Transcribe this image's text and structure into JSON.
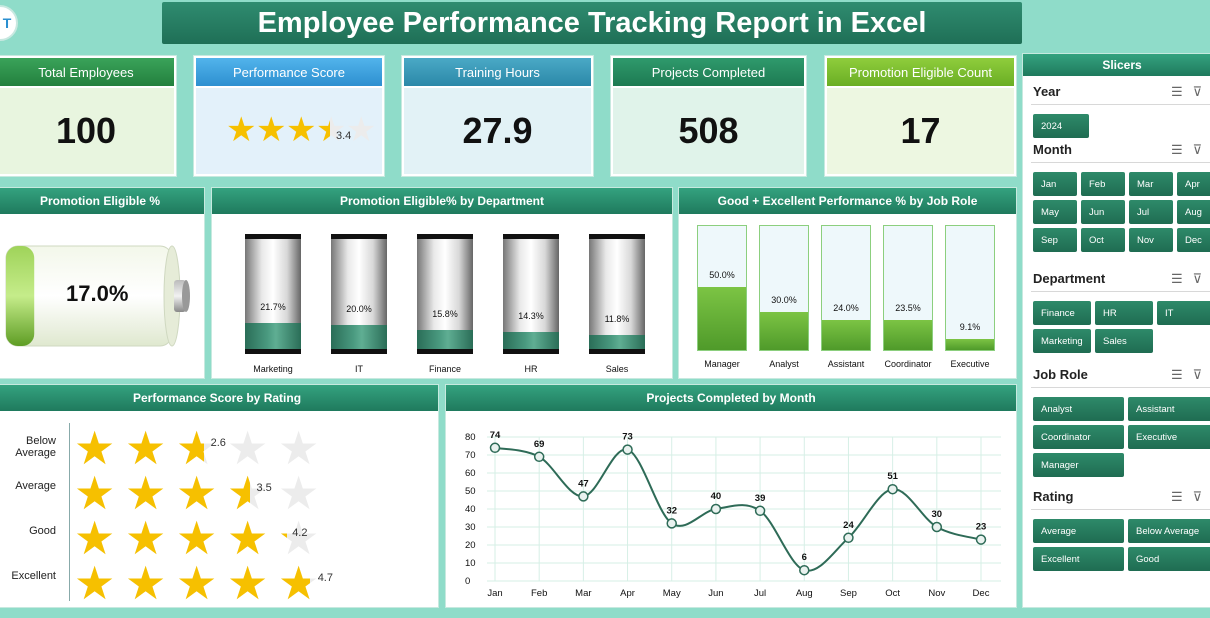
{
  "title": "Employee Performance Tracking Report in Excel",
  "logo_text": "T",
  "kpis": {
    "total_employees": {
      "label": "Total Employees",
      "value": "100"
    },
    "performance_score": {
      "label": "Performance Score",
      "value": "3.4",
      "rating": 3.4,
      "max": 5
    },
    "training_hours": {
      "label": "Training Hours",
      "value": "27.9"
    },
    "projects_completed": {
      "label": "Projects Completed",
      "value": "508"
    },
    "promotion_eligible_count": {
      "label": "Promotion Eligible Count",
      "value": "17"
    }
  },
  "promotion_pct": {
    "title": "Promotion Eligible %",
    "value_label": "17.0%",
    "value": 17.0
  },
  "colors": {
    "header_green": "#1f7a5d",
    "accent": "#3a8c74",
    "bar_green": "#6fbb3a",
    "star": "#f6c000"
  },
  "chart_data": [
    {
      "type": "bar",
      "title": "Promotion Eligible% by Department",
      "categories": [
        "Marketing",
        "IT",
        "Finance",
        "HR",
        "Sales"
      ],
      "values": [
        21.7,
        20.0,
        15.8,
        14.3,
        11.8
      ],
      "labels": [
        "21.7%",
        "20.0%",
        "15.8%",
        "14.3%",
        "11.8%"
      ],
      "ylim": [
        0,
        100
      ]
    },
    {
      "type": "bar",
      "title": "Good + Excellent Performance % by Job Role",
      "categories": [
        "Manager",
        "Analyst",
        "Assistant",
        "Coordinator",
        "Executive"
      ],
      "values": [
        50.0,
        30.0,
        24.0,
        23.5,
        9.1
      ],
      "labels": [
        "50.0%",
        "30.0%",
        "24.0%",
        "23.5%",
        "9.1%"
      ],
      "ylim": [
        0,
        100
      ]
    },
    {
      "type": "bar",
      "title": "Performance Score by Rating",
      "categories": [
        "Below Average",
        "Average",
        "Good",
        "Excellent"
      ],
      "values": [
        2.6,
        3.5,
        4.2,
        4.7
      ],
      "labels": [
        "2.6",
        "3.5",
        "4.2",
        "4.7"
      ],
      "ylim": [
        0,
        5
      ]
    },
    {
      "type": "line",
      "title": "Projects Completed by Month",
      "categories": [
        "Jan",
        "Feb",
        "Mar",
        "Apr",
        "May",
        "Jun",
        "Jul",
        "Aug",
        "Sep",
        "Oct",
        "Nov",
        "Dec"
      ],
      "values": [
        74,
        69,
        47,
        73,
        32,
        40,
        39,
        6,
        24,
        51,
        30,
        23
      ],
      "yticks": [
        "80",
        "70",
        "60",
        "50",
        "40",
        "30",
        "20",
        "10",
        "0"
      ],
      "ylim": [
        0,
        80
      ]
    }
  ],
  "slicers": {
    "title": "Slicers",
    "year": {
      "label": "Year",
      "options": [
        "2024"
      ]
    },
    "month": {
      "label": "Month",
      "options": [
        "Jan",
        "Feb",
        "Mar",
        "Apr",
        "May",
        "Jun",
        "Jul",
        "Aug",
        "Sep",
        "Oct",
        "Nov",
        "Dec"
      ]
    },
    "department": {
      "label": "Department",
      "options": [
        "Finance",
        "HR",
        "IT",
        "Marketing",
        "Sales"
      ]
    },
    "job_role": {
      "label": "Job Role",
      "options": [
        "Analyst",
        "Assistant",
        "Coordinator",
        "Executive",
        "Manager"
      ]
    },
    "rating": {
      "label": "Rating",
      "options": [
        "Average",
        "Below Average",
        "Excellent",
        "Good"
      ]
    }
  }
}
